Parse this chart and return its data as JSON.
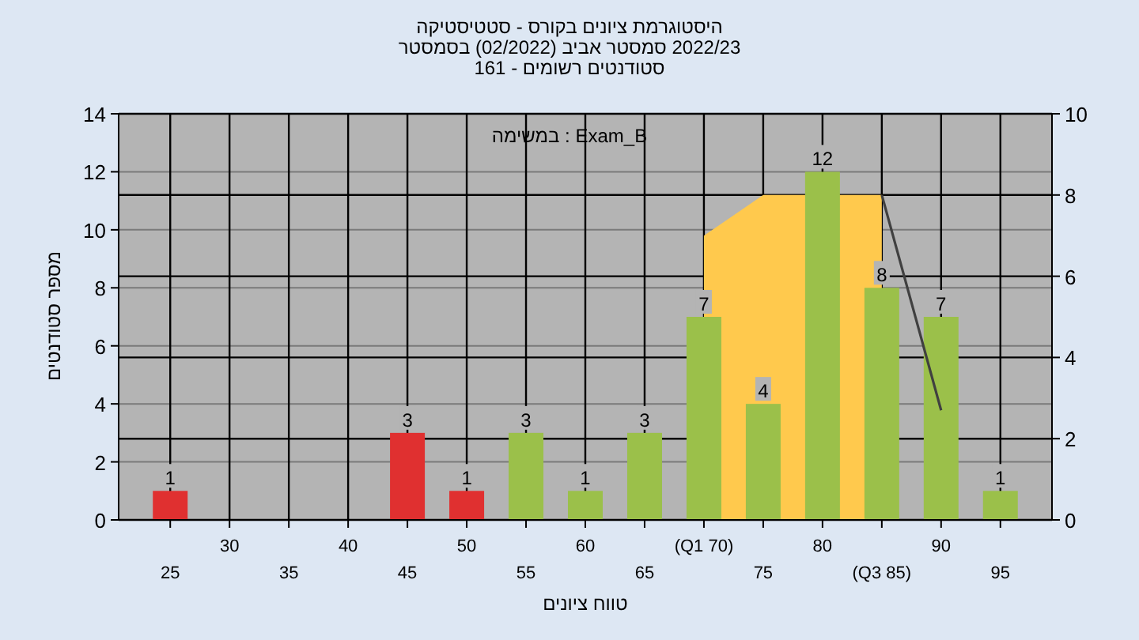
{
  "chart_data": {
    "type": "bar",
    "title": "היסטוגרמת ציונים בקורס - סטטיסטיקה",
    "subtitle": "2022/23 סמסטר אביב (02/2022) בסמסטר",
    "xlabel": "טווח ציונים",
    "ylabel": "מספר סטודנטים",
    "annotations": [
      "סטודנטים רשומים - 161",
      "Exam_B : במשימה"
    ],
    "categories": [
      "25",
      "30",
      "35",
      "40",
      "45",
      "50",
      "55",
      "60",
      "65",
      "(Q1 70)",
      "75",
      "80",
      "(Q3 85)",
      "90",
      "95"
    ],
    "series": [
      {
        "colors": [
          "#e03030",
          "#e03030",
          "#e03030",
          "#e03030",
          "#e03030",
          "#e03030",
          "#9bc04a",
          "#9bc04a",
          "#9bc04a",
          "#9bc04a",
          "#9bc04a",
          "#9bc04a",
          "#9bc04a",
          "#9bc04a",
          "#9bc04a"
        ],
        "values": [
          1,
          0,
          0,
          0,
          3,
          1,
          3,
          1,
          3,
          7,
          4,
          12,
          8,
          7,
          1
        ],
        "value_labels": [
          "1",
          null,
          null,
          null,
          "3",
          "1",
          "3",
          "1",
          "3",
          "7",
          "4",
          "12",
          "8",
          "7",
          "1"
        ]
      },
      {
        "type": "area",
        "axis": "y2",
        "color": "#ffc94d",
        "values": [
          null,
          null,
          null,
          null,
          null,
          null,
          null,
          null,
          null,
          7,
          8,
          null,
          8,
          null,
          null
        ]
      },
      {
        "type": "line",
        "axis": "y2",
        "color": "#404040",
        "values": [
          null,
          null,
          null,
          null,
          null,
          null,
          null,
          null,
          null,
          null,
          null,
          null,
          8,
          2.7,
          null
        ]
      }
    ],
    "ylim": [
      0,
      14
    ],
    "yticks": [
      0,
      2,
      4,
      6,
      8,
      10,
      12,
      14
    ],
    "y2lim": [
      0,
      10
    ],
    "y2ticks": [
      0,
      2,
      4,
      6,
      8,
      10
    ],
    "grid": true
  }
}
